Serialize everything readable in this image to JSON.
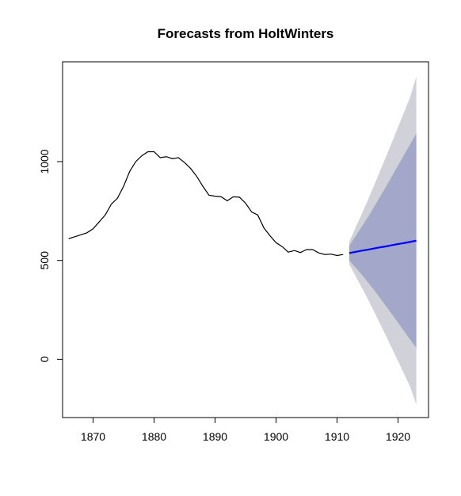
{
  "chart_data": {
    "type": "line",
    "title": "Forecasts from HoltWinters",
    "xlabel": "",
    "ylabel": "",
    "xlim": [
      1865,
      1925
    ],
    "ylim": [
      -295,
      1505
    ],
    "x_ticks": [
      1870,
      1880,
      1890,
      1900,
      1910,
      1920
    ],
    "y_ticks": [
      0,
      500,
      1000
    ],
    "grid": false,
    "colors": {
      "observed": "#000000",
      "forecast": "#0000ff",
      "band_80": "#a3a8cb",
      "band_95": "#d1d1d9"
    },
    "observed": {
      "x": [
        1866,
        1867,
        1868,
        1869,
        1870,
        1871,
        1872,
        1873,
        1874,
        1875,
        1876,
        1877,
        1878,
        1879,
        1880,
        1881,
        1882,
        1883,
        1884,
        1885,
        1886,
        1887,
        1888,
        1889,
        1890,
        1891,
        1892,
        1893,
        1894,
        1895,
        1896,
        1897,
        1898,
        1899,
        1900,
        1901,
        1902,
        1903,
        1904,
        1905,
        1906,
        1907,
        1908,
        1909,
        1910,
        1911
      ],
      "y": [
        610,
        620,
        630,
        640,
        660,
        695,
        730,
        785,
        815,
        875,
        950,
        1000,
        1030,
        1050,
        1050,
        1020,
        1025,
        1015,
        1020,
        995,
        965,
        925,
        875,
        830,
        825,
        822,
        802,
        822,
        820,
        790,
        745,
        730,
        665,
        625,
        590,
        570,
        542,
        550,
        540,
        555,
        555,
        538,
        530,
        532,
        525,
        530
      ]
    },
    "forecast": {
      "x": [
        1912,
        1913,
        1914,
        1915,
        1916,
        1917,
        1918,
        1919,
        1920,
        1921,
        1922,
        1923
      ],
      "mean": [
        537,
        543,
        549,
        554,
        560,
        566,
        571,
        577,
        583,
        588,
        594,
        600
      ],
      "lo80": [
        500,
        465,
        430,
        392,
        353,
        312,
        270,
        228,
        185,
        142,
        99,
        58
      ],
      "hi80": [
        574,
        621,
        668,
        716,
        767,
        820,
        872,
        926,
        981,
        1034,
        1089,
        1142
      ],
      "lo95": [
        480,
        423,
        366,
        307,
        246,
        183,
        120,
        56,
        -9,
        -74,
        -140,
        -230
      ],
      "hi95": [
        594,
        663,
        732,
        801,
        874,
        949,
        1022,
        1098,
        1175,
        1250,
        1328,
        1430
      ]
    }
  }
}
